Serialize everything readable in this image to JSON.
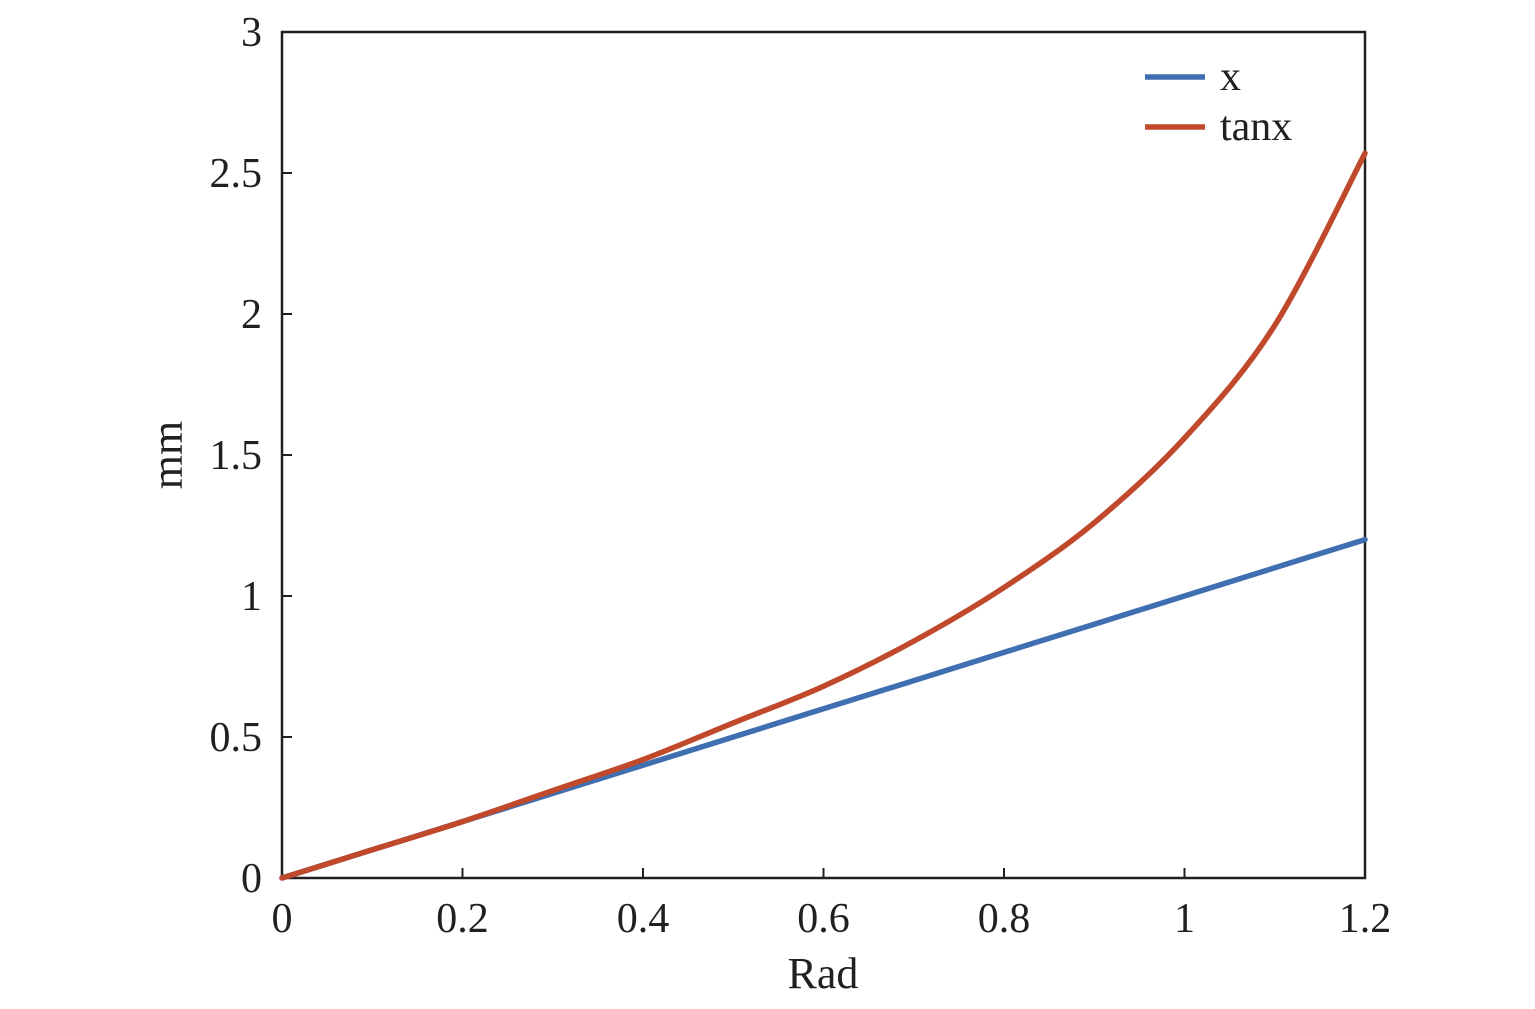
{
  "chart_data": {
    "type": "line",
    "title": "",
    "xlabel": "Rad",
    "ylabel": "mm",
    "xlim": [
      0,
      1.2
    ],
    "ylim": [
      0,
      3
    ],
    "xticks": [
      0,
      0.2,
      0.4,
      0.6,
      0.8,
      1,
      1.2
    ],
    "xtick_labels": [
      "0",
      "0.2",
      "0.4",
      "0.6",
      "0.8",
      "1",
      "1.2"
    ],
    "yticks": [
      0,
      0.5,
      1,
      1.5,
      2,
      2.5,
      3
    ],
    "ytick_labels": [
      "0",
      "0.5",
      "1",
      "1.5",
      "2",
      "2.5",
      "3"
    ],
    "grid": false,
    "legend_position": "top-right",
    "x": [
      0,
      0.1,
      0.2,
      0.3,
      0.4,
      0.5,
      0.6,
      0.7,
      0.8,
      0.9,
      1.0,
      1.1,
      1.2
    ],
    "series": [
      {
        "name": "x",
        "color": "#3f6fb0",
        "values": [
          0,
          0.1,
          0.2,
          0.3,
          0.4,
          0.5,
          0.6,
          0.7,
          0.8,
          0.9,
          1.0,
          1.1,
          1.2
        ]
      },
      {
        "name": "tanx",
        "color": "#c0482b",
        "values": [
          0,
          0.1,
          0.2,
          0.31,
          0.42,
          0.55,
          0.68,
          0.84,
          1.03,
          1.26,
          1.56,
          1.96,
          2.57
        ]
      }
    ]
  }
}
